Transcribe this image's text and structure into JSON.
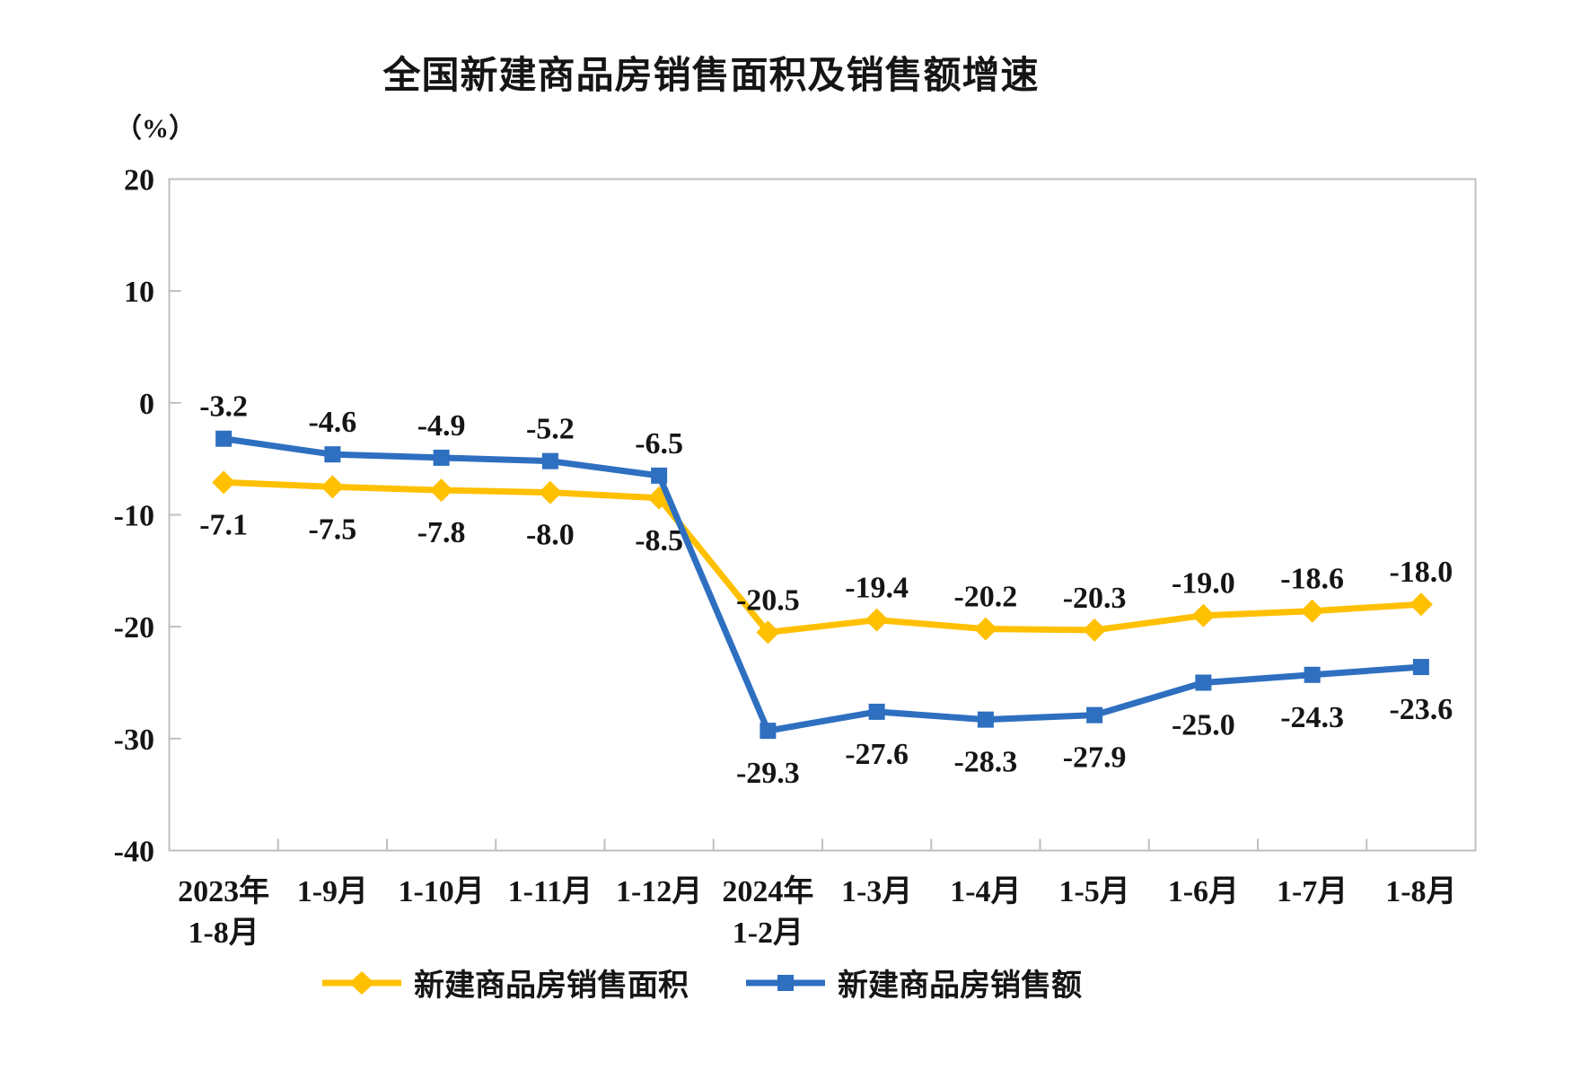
{
  "chart_data": {
    "type": "line",
    "title": "全国新建商品房销售面积及销售额增速",
    "unit": "（%）",
    "categories": [
      "2023年\n1-8月",
      "1-9月",
      "1-10月",
      "1-11月",
      "1-12月",
      "2024年\n1-2月",
      "1-3月",
      "1-4月",
      "1-5月",
      "1-6月",
      "1-7月",
      "1-8月"
    ],
    "series": [
      {
        "name": "新建商品房销售面积",
        "color": "#FFC000",
        "marker": "diamond",
        "values": [
          -7.1,
          -7.5,
          -7.8,
          -8.0,
          -8.5,
          -20.5,
          -19.4,
          -20.2,
          -20.3,
          -19.0,
          -18.6,
          -18.0
        ],
        "label_side": [
          "below",
          "below",
          "below",
          "below",
          "below",
          "above",
          "above",
          "above",
          "above",
          "above",
          "above",
          "above"
        ]
      },
      {
        "name": "新建商品房销售额",
        "color": "#2E6FC0",
        "marker": "square",
        "values": [
          -3.2,
          -4.6,
          -4.9,
          -5.2,
          -6.5,
          -29.3,
          -27.6,
          -28.3,
          -27.9,
          -25.0,
          -24.3,
          -23.6
        ],
        "label_side": [
          "above",
          "above",
          "above",
          "above",
          "above",
          "below",
          "below",
          "below",
          "below",
          "below",
          "below",
          "below"
        ]
      }
    ],
    "y_axis": {
      "min": -40,
      "max": 20,
      "ticks": [
        20,
        10,
        0,
        -10,
        -20,
        -30,
        -40
      ]
    },
    "legend_position": "bottom",
    "grid": false,
    "axis_color": "#BFBFBF",
    "text_color": "#151515"
  }
}
